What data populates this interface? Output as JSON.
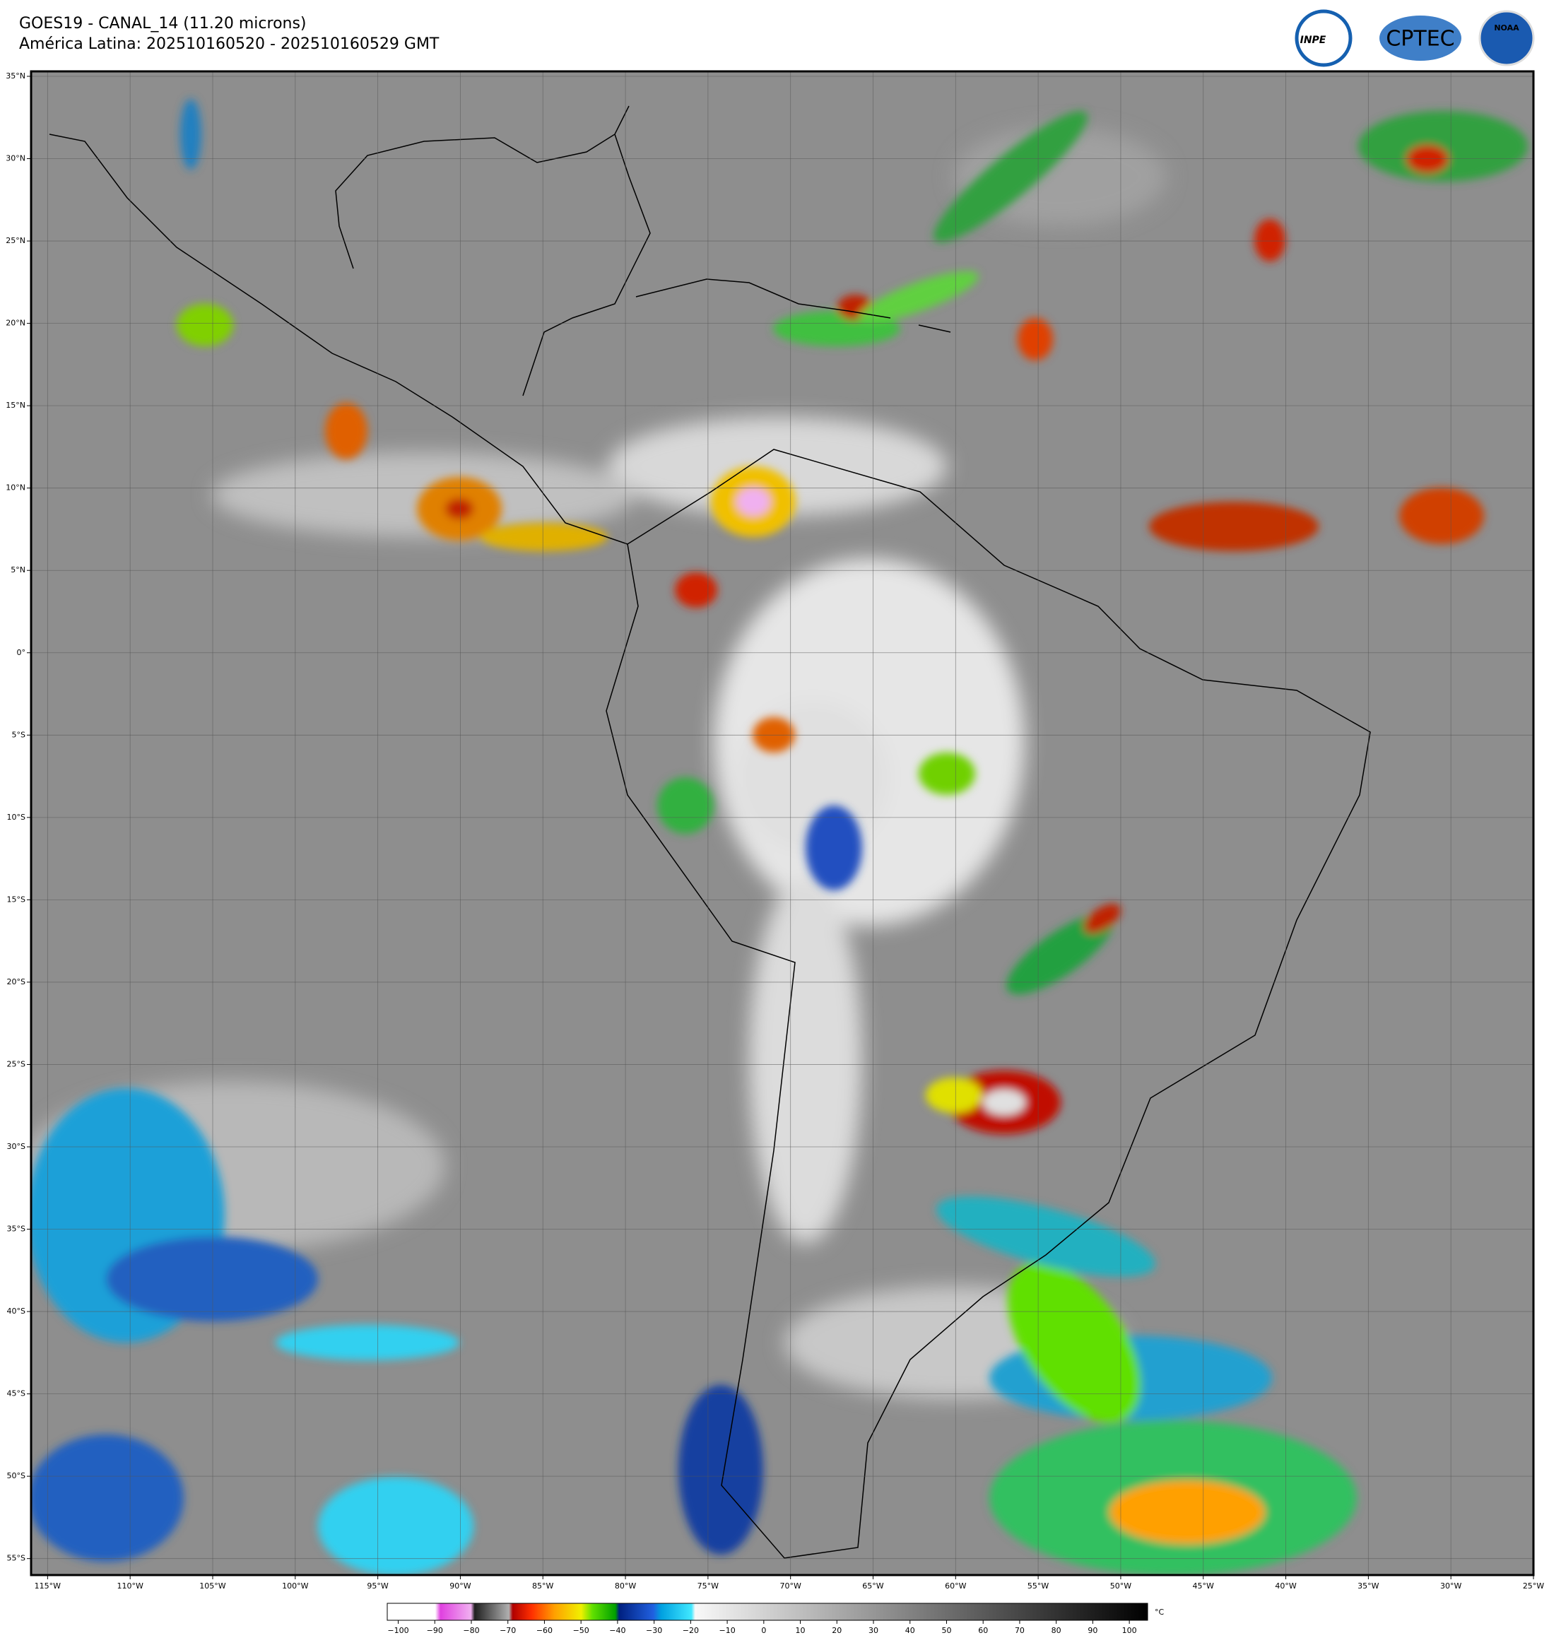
{
  "header": {
    "title": "GOES19 - CANAL_14 (11.20 microns)",
    "subtitle": "América Latina: 202510160520 - 202510160529 GMT"
  },
  "logos": [
    "INPE",
    "CPTEC",
    "NOAA"
  ],
  "map": {
    "lonlim": [
      -116,
      -25
    ],
    "latlim": [
      -56,
      35.3
    ],
    "lonticks": [
      {
        "value": -115,
        "label": "115°W"
      },
      {
        "value": -110,
        "label": "110°W"
      },
      {
        "value": -105,
        "label": "105°W"
      },
      {
        "value": -100,
        "label": "100°W"
      },
      {
        "value": -95,
        "label": "95°W"
      },
      {
        "value": -90,
        "label": "90°W"
      },
      {
        "value": -85,
        "label": "85°W"
      },
      {
        "value": -80,
        "label": "80°W"
      },
      {
        "value": -75,
        "label": "75°W"
      },
      {
        "value": -70,
        "label": "70°W"
      },
      {
        "value": -65,
        "label": "65°W"
      },
      {
        "value": -60,
        "label": "60°W"
      },
      {
        "value": -55,
        "label": "55°W"
      },
      {
        "value": -50,
        "label": "50°W"
      },
      {
        "value": -45,
        "label": "45°W"
      },
      {
        "value": -40,
        "label": "40°W"
      },
      {
        "value": -35,
        "label": "35°W"
      },
      {
        "value": -30,
        "label": "30°W"
      },
      {
        "value": -25,
        "label": "25°W"
      }
    ],
    "latticks": [
      {
        "value": 35,
        "label": "35°N"
      },
      {
        "value": 30,
        "label": "30°N"
      },
      {
        "value": 25,
        "label": "25°N"
      },
      {
        "value": 20,
        "label": "20°N"
      },
      {
        "value": 15,
        "label": "15°N"
      },
      {
        "value": 10,
        "label": "10°N"
      },
      {
        "value": 5,
        "label": "5°N"
      },
      {
        "value": 0,
        "label": "0°"
      },
      {
        "value": -5,
        "label": "5°S"
      },
      {
        "value": -10,
        "label": "10°S"
      },
      {
        "value": -15,
        "label": "15°S"
      },
      {
        "value": -20,
        "label": "20°S"
      },
      {
        "value": -25,
        "label": "25°S"
      },
      {
        "value": -30,
        "label": "30°S"
      },
      {
        "value": -35,
        "label": "35°S"
      },
      {
        "value": -40,
        "label": "40°S"
      },
      {
        "value": -45,
        "label": "45°S"
      },
      {
        "value": -50,
        "label": "50°S"
      },
      {
        "value": -55,
        "label": "55°S"
      }
    ]
  },
  "colorbar": {
    "lim": [
      -103,
      105
    ],
    "unit": "°C",
    "ticks": [
      {
        "value": -100,
        "label": "−100"
      },
      {
        "value": -90,
        "label": "−90"
      },
      {
        "value": -80,
        "label": "−80"
      },
      {
        "value": -70,
        "label": "−70"
      },
      {
        "value": -60,
        "label": "−60"
      },
      {
        "value": -50,
        "label": "−50"
      },
      {
        "value": -40,
        "label": "−40"
      },
      {
        "value": -30,
        "label": "−30"
      },
      {
        "value": -20,
        "label": "−20"
      },
      {
        "value": -10,
        "label": "−10"
      },
      0,
      10,
      20,
      30,
      40,
      50,
      60,
      70,
      80,
      90,
      100
    ]
  }
}
